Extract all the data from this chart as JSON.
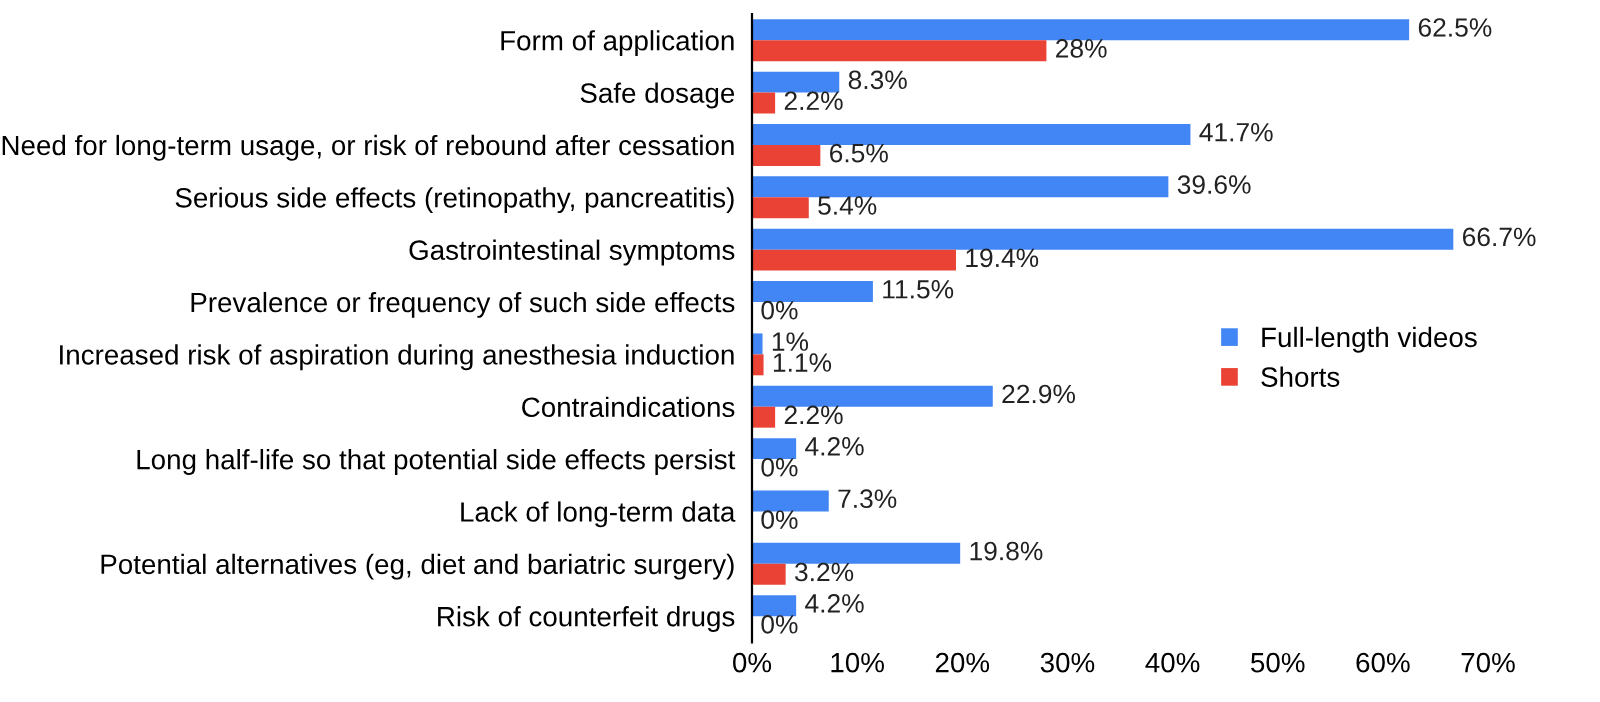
{
  "chart_data": {
    "type": "bar",
    "orientation": "horizontal",
    "categories": [
      "Form of application",
      "Safe dosage",
      "Need for long-term usage, or risk of rebound after cessation",
      "Serious side effects (retinopathy, pancreatitis)",
      "Gastrointestinal symptoms",
      "Prevalence or frequency of such side effects",
      "Increased risk of aspiration during anesthesia induction",
      "Contraindications",
      "Long half-life so that potential side effects persist",
      "Lack of long-term data",
      "Potential alternatives (eg, diet and bariatric surgery)",
      "Risk of counterfeit drugs"
    ],
    "series": [
      {
        "name": "Full-length videos",
        "color": "#4285f4",
        "values": [
          62.5,
          8.3,
          41.7,
          39.6,
          66.7,
          11.5,
          1,
          22.9,
          4.2,
          7.3,
          19.8,
          4.2
        ],
        "value_labels": [
          "62.5%",
          "8.3%",
          "41.7%",
          "39.6%",
          "66.7%",
          "11.5%",
          "1%",
          "22.9%",
          "4.2%",
          "7.3%",
          "19.8%",
          "4.2%"
        ]
      },
      {
        "name": "Shorts",
        "color": "#ea4335",
        "values": [
          28,
          2.2,
          6.5,
          5.4,
          19.4,
          0,
          1.1,
          2.2,
          0,
          0,
          3.2,
          0
        ],
        "value_labels": [
          "28%",
          "2.2%",
          "6.5%",
          "5.4%",
          "19.4%",
          "0%",
          "1.1%",
          "2.2%",
          "0%",
          "0%",
          "3.2%",
          "0%"
        ]
      }
    ],
    "xlim": [
      0,
      70
    ],
    "xticks": [
      {
        "value": 0,
        "label": "0%"
      },
      {
        "value": 10,
        "label": "10%"
      },
      {
        "value": 20,
        "label": "20%"
      },
      {
        "value": 30,
        "label": "30%"
      },
      {
        "value": 40,
        "label": "40%"
      },
      {
        "value": 50,
        "label": "50%"
      },
      {
        "value": 60,
        "label": "60%"
      },
      {
        "value": 70,
        "label": "70%"
      }
    ],
    "legend": "right",
    "grid": false
  }
}
